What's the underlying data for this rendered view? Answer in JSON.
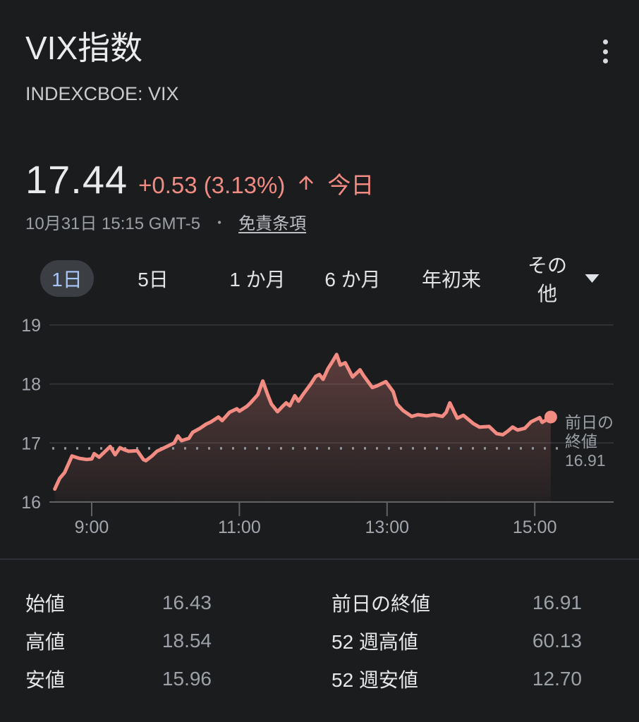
{
  "header": {
    "title": "VIX指数",
    "ticker": "INDEXCBOE: VIX"
  },
  "quote": {
    "price": "17.44",
    "change": "+0.53 (3.13%)",
    "period_label": "今日",
    "timestamp": "10月31日 15:15 GMT-5",
    "separator": "・",
    "disclaimer": "免責条項"
  },
  "tabs": {
    "items": [
      "1日",
      "5日",
      "1 か月",
      "6 か月",
      "年初来",
      "その他"
    ],
    "selected": "1日"
  },
  "colors": {
    "background": "#1b1c1e",
    "accent_red": "#f28b82",
    "tab_selected_text": "#a8c7fa",
    "tab_selected_bg": "#3b3e42",
    "secondary_text": "#9aa0a6"
  },
  "chart_data": {
    "type": "line",
    "x_ticks": [
      "9:00",
      "11:00",
      "13:00",
      "15:00"
    ],
    "y_ticks": [
      16,
      17,
      18,
      19
    ],
    "y_range": [
      16,
      19
    ],
    "x_range_minutes": [
      "8:30",
      "15:15"
    ],
    "grid": true,
    "line_color": "#f28b82",
    "prev_close": 16.91,
    "prev_close_label": [
      "前日の",
      "終値",
      "16.91"
    ],
    "points": [
      [
        "8:30",
        16.22
      ],
      [
        "8:34",
        16.4
      ],
      [
        "8:38",
        16.5
      ],
      [
        "8:44",
        16.78
      ],
      [
        "8:50",
        16.74
      ],
      [
        "8:56",
        16.72
      ],
      [
        "9:00",
        16.73
      ],
      [
        "9:02",
        16.82
      ],
      [
        "9:06",
        16.76
      ],
      [
        "9:13",
        16.9
      ],
      [
        "9:15",
        16.94
      ],
      [
        "9:19",
        16.8
      ],
      [
        "9:23",
        16.92
      ],
      [
        "9:26",
        16.89
      ],
      [
        "9:30",
        16.86
      ],
      [
        "9:37",
        16.87
      ],
      [
        "9:42",
        16.72
      ],
      [
        "9:44",
        16.7
      ],
      [
        "9:49",
        16.78
      ],
      [
        "9:53",
        16.86
      ],
      [
        "9:59",
        16.92
      ],
      [
        "10:07",
        17.0
      ],
      [
        "10:10",
        17.12
      ],
      [
        "10:13",
        17.04
      ],
      [
        "10:19",
        17.08
      ],
      [
        "10:22",
        17.18
      ],
      [
        "10:28",
        17.25
      ],
      [
        "10:33",
        17.32
      ],
      [
        "10:37",
        17.36
      ],
      [
        "10:43",
        17.44
      ],
      [
        "10:46",
        17.38
      ],
      [
        "10:52",
        17.52
      ],
      [
        "10:58",
        17.58
      ],
      [
        "11:00",
        17.54
      ],
      [
        "11:06",
        17.62
      ],
      [
        "11:09",
        17.68
      ],
      [
        "11:15",
        17.82
      ],
      [
        "11:19",
        18.05
      ],
      [
        "11:23",
        17.82
      ],
      [
        "11:26",
        17.66
      ],
      [
        "11:31",
        17.53
      ],
      [
        "11:35",
        17.62
      ],
      [
        "11:38",
        17.68
      ],
      [
        "11:41",
        17.63
      ],
      [
        "11:45",
        17.8
      ],
      [
        "11:48",
        17.71
      ],
      [
        "11:52",
        17.83
      ],
      [
        "11:58",
        18.0
      ],
      [
        "12:02",
        18.13
      ],
      [
        "12:05",
        18.16
      ],
      [
        "12:08",
        18.08
      ],
      [
        "12:12",
        18.26
      ],
      [
        "12:15",
        18.36
      ],
      [
        "12:19",
        18.5
      ],
      [
        "12:22",
        18.32
      ],
      [
        "12:26",
        18.36
      ],
      [
        "12:32",
        18.12
      ],
      [
        "12:38",
        18.24
      ],
      [
        "12:41",
        18.14
      ],
      [
        "12:48",
        17.94
      ],
      [
        "12:52",
        17.97
      ],
      [
        "12:59",
        18.04
      ],
      [
        "13:05",
        17.87
      ],
      [
        "13:08",
        17.66
      ],
      [
        "13:13",
        17.55
      ],
      [
        "13:20",
        17.45
      ],
      [
        "13:25",
        17.48
      ],
      [
        "13:32",
        17.46
      ],
      [
        "13:38",
        17.48
      ],
      [
        "13:45",
        17.45
      ],
      [
        "13:48",
        17.52
      ],
      [
        "13:51",
        17.68
      ],
      [
        "13:57",
        17.42
      ],
      [
        "14:02",
        17.47
      ],
      [
        "14:06",
        17.4
      ],
      [
        "14:10",
        17.33
      ],
      [
        "14:15",
        17.27
      ],
      [
        "14:23",
        17.28
      ],
      [
        "14:29",
        17.16
      ],
      [
        "14:34",
        17.14
      ],
      [
        "14:38",
        17.2
      ],
      [
        "14:42",
        17.27
      ],
      [
        "14:46",
        17.22
      ],
      [
        "14:52",
        17.25
      ],
      [
        "14:57",
        17.36
      ],
      [
        "15:04",
        17.43
      ],
      [
        "15:06",
        17.35
      ],
      [
        "15:10",
        17.4
      ],
      [
        "15:13",
        17.44
      ]
    ]
  },
  "stats": {
    "left": [
      {
        "label": "始値",
        "value": "16.43"
      },
      {
        "label": "高値",
        "value": "18.54"
      },
      {
        "label": "安値",
        "value": "15.96"
      }
    ],
    "right": [
      {
        "label": "前日の終値",
        "value": "16.91"
      },
      {
        "label": "52 週高値",
        "value": "60.13"
      },
      {
        "label": "52 週安値",
        "value": "12.70"
      }
    ]
  }
}
